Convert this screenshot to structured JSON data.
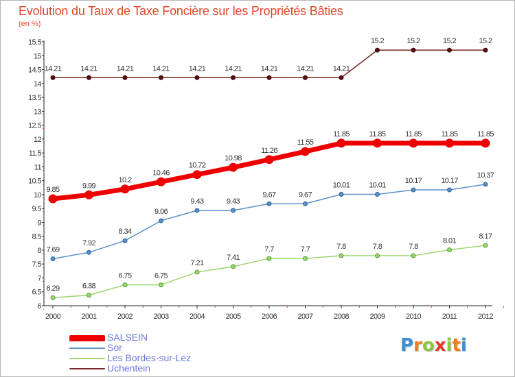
{
  "header": {
    "title": "Evolution du Taux de Taxe Foncière sur les Propriétés Bâties",
    "unit": "(en %)"
  },
  "logo": {
    "text": "Proxiti",
    "letter_colors": [
      "#3d8fd6",
      "#f07d1c",
      "#8cc63f",
      "#e8392a",
      "#8cc63f",
      "#f07d1c",
      "#3d8fd6"
    ]
  },
  "chart_data": {
    "type": "line",
    "title": "Evolution du Taux de Taxe Foncière sur les Propriétés Bâties",
    "ylabel": "(en %)",
    "xlabel": "",
    "x": [
      "2000",
      "2001",
      "2002",
      "2003",
      "2004",
      "2005",
      "2006",
      "2007",
      "2008",
      "2009",
      "2010",
      "2011",
      "2012"
    ],
    "ylim": [
      6,
      15.5
    ],
    "yticks": [
      "6",
      "6.5",
      "7",
      "7.5",
      "8",
      "8.5",
      "9",
      "9.5",
      "10",
      "10.5",
      "11",
      "11.5",
      "12",
      "12.5",
      "13",
      "13.5",
      "14",
      "14.5",
      "15",
      "15.5"
    ],
    "grid": false,
    "legend_position": "bottom-left",
    "series": [
      {
        "name": "SALSEIN",
        "color": "#ee0000",
        "values": [
          9.85,
          9.99,
          10.2,
          10.46,
          10.72,
          10.98,
          11.26,
          11.55,
          11.85,
          11.85,
          11.85,
          11.85,
          11.85
        ],
        "labels": [
          "9.85",
          "9.99",
          "10.2",
          "10.46",
          "10.72",
          "10.98",
          "11.26",
          "11.55",
          "11.85",
          "11.85",
          "11.85",
          "11.85",
          "11.85"
        ]
      },
      {
        "name": "Sor",
        "color": "#5b90c8",
        "values": [
          7.69,
          7.92,
          8.34,
          9.06,
          9.43,
          9.43,
          9.67,
          9.67,
          10.01,
          10.01,
          10.17,
          10.17,
          10.37
        ],
        "labels": [
          "7.69",
          "7.92",
          "8.34",
          "9.06",
          "9.43",
          "9.43",
          "9.67",
          "9.67",
          "10.01",
          "10.01",
          "10.17",
          "10.17",
          "10.37"
        ]
      },
      {
        "name": "Les Bordes-sur-Lez",
        "color": "#9cd66f",
        "values": [
          6.29,
          6.38,
          6.75,
          6.75,
          7.21,
          7.41,
          7.7,
          7.7,
          7.8,
          7.8,
          7.8,
          8.01,
          8.17
        ],
        "labels": [
          "6.29",
          "6.38",
          "6.75",
          "6.75",
          "7.21",
          "7.41",
          "7.7",
          "7.7",
          "7.8",
          "7.8",
          "7.8",
          "8.01",
          "8.17"
        ]
      },
      {
        "name": "Uchentein",
        "color": "#7a2a2a",
        "values": [
          14.21,
          14.21,
          14.21,
          14.21,
          14.21,
          14.21,
          14.21,
          14.21,
          14.21,
          15.2,
          15.2,
          15.2,
          15.2
        ],
        "labels": [
          "14.21",
          "14.21",
          "14.21",
          "14.21",
          "14.21",
          "14.21",
          "14.21",
          "14.21",
          "14.21",
          "15.2",
          "15.2",
          "15.2",
          "15.2"
        ]
      }
    ]
  }
}
